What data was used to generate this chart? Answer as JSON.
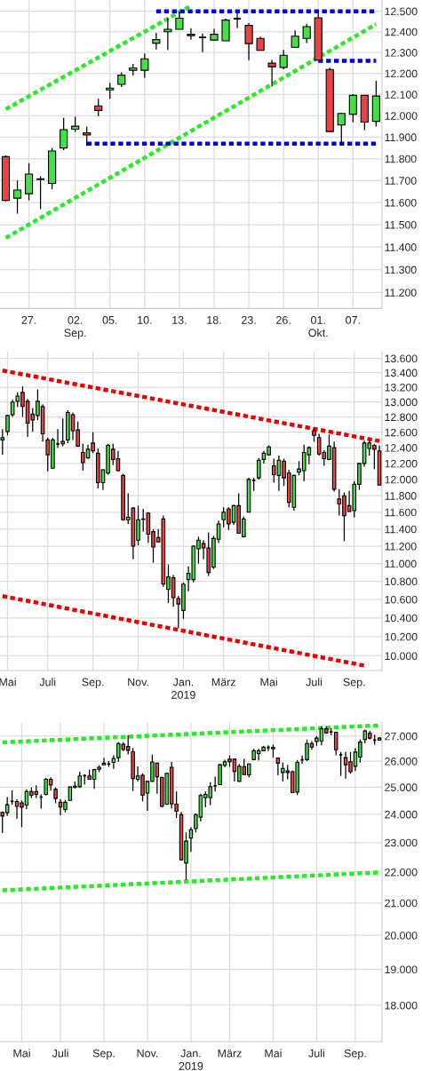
{
  "chart_data": [
    {
      "type": "candlestick",
      "log": true,
      "grid": true,
      "legend": false,
      "categories": [
        null,
        null,
        "27.",
        null,
        null,
        null,
        "02.\nSep.",
        null,
        null,
        "05.",
        null,
        null,
        "10.",
        null,
        null,
        "13.",
        null,
        null,
        "18.",
        null,
        null,
        "23.",
        null,
        null,
        "26.",
        null,
        null,
        "01.\nOkt.",
        null,
        null,
        "07.",
        null,
        null
      ],
      "ohlc": [
        [
          11810,
          11815,
          11605,
          11610
        ],
        [
          11620,
          11700,
          11550,
          11657
        ],
        [
          11640,
          11780,
          11610,
          11730
        ],
        [
          11705,
          11720,
          11570,
          11708
        ],
        [
          11687,
          11850,
          11660,
          11836
        ],
        [
          11850,
          11990,
          11840,
          11935
        ],
        [
          11937,
          11995,
          11925,
          11951
        ],
        [
          11920,
          11950,
          11860,
          11910
        ],
        [
          12046,
          12080,
          11998,
          12025
        ],
        [
          12122,
          12155,
          12080,
          12130
        ],
        [
          12148,
          12205,
          12135,
          12192
        ],
        [
          12215,
          12245,
          12190,
          12226
        ],
        [
          12215,
          12295,
          12180,
          12270
        ],
        [
          12345,
          12395,
          12315,
          12362
        ],
        [
          12400,
          12468,
          12312,
          12412
        ],
        [
          12412,
          12498,
          12412,
          12466
        ],
        [
          12388,
          12418,
          12362,
          12381
        ],
        [
          12373,
          12392,
          12302,
          12373
        ],
        [
          12360,
          12414,
          12357,
          12388
        ],
        [
          12356,
          12464,
          12356,
          12457
        ],
        [
          12464,
          12492,
          12418,
          12464
        ],
        [
          12431,
          12442,
          12263,
          12343
        ],
        [
          12368,
          12377,
          12310,
          12310
        ],
        [
          12249,
          12264,
          12137,
          12232
        ],
        [
          12229,
          12312,
          12220,
          12287
        ],
        [
          12325,
          12407,
          12325,
          12379
        ],
        [
          12368,
          12439,
          12346,
          12425
        ],
        [
          12468,
          12492,
          12264,
          12264
        ],
        [
          12219,
          12227,
          11926,
          11926
        ],
        [
          11957,
          12015,
          11870,
          12011
        ],
        [
          12007,
          12102,
          11970,
          12096
        ],
        [
          12096,
          12096,
          11933,
          11970
        ],
        [
          11974,
          12165,
          11950,
          12093
        ]
      ],
      "colors": [
        "#e84444",
        "#45e045",
        "#45e045",
        "#000000",
        "#45e045",
        "#45e045",
        "#45e045",
        "#e84444",
        "#e84444",
        "#45e045",
        "#45e045",
        "#45e045",
        "#45e045",
        "#45e045",
        "#45e045",
        "#45e045",
        "#e84444",
        "#000000",
        "#45e045",
        "#45e045",
        "#000000",
        "#e84444",
        "#e84444",
        "#e84444",
        "#45e045",
        "#45e045",
        "#45e045",
        "#e84444",
        "#e84444",
        "#45e045",
        "#45e045",
        "#e84444",
        "#45e045"
      ],
      "series": [
        {
          "type": "line",
          "color": "#22ee22",
          "line_style": "dotted",
          "values": [
            12031,
            null,
            null,
            null,
            null,
            null,
            null,
            null,
            null,
            null,
            null,
            null,
            null,
            null,
            null,
            null,
            12527,
            null,
            null,
            null,
            null,
            null,
            null,
            null,
            null,
            null,
            null,
            null,
            null,
            null,
            null,
            null,
            null
          ]
        },
        {
          "type": "line",
          "color": "#22ee22",
          "line_style": "dotted",
          "values": [
            11441,
            null,
            null,
            null,
            null,
            null,
            null,
            null,
            null,
            null,
            null,
            null,
            null,
            null,
            null,
            null,
            null,
            null,
            null,
            null,
            null,
            null,
            null,
            null,
            null,
            null,
            null,
            null,
            null,
            null,
            null,
            null,
            12437
          ]
        },
        {
          "type": "line",
          "color": "#0000ee",
          "line_style": "dotted",
          "values": [
            null,
            null,
            null,
            null,
            null,
            null,
            null,
            null,
            null,
            null,
            null,
            null,
            null,
            12500,
            null,
            null,
            null,
            null,
            null,
            null,
            null,
            null,
            null,
            null,
            null,
            null,
            null,
            null,
            null,
            null,
            null,
            null,
            12500
          ]
        },
        {
          "type": "line",
          "color": "#0000ee",
          "line_style": "dotted",
          "values": [
            null,
            null,
            null,
            null,
            null,
            null,
            null,
            11870,
            null,
            null,
            null,
            null,
            null,
            null,
            null,
            null,
            null,
            null,
            null,
            null,
            null,
            null,
            null,
            null,
            null,
            null,
            null,
            null,
            null,
            null,
            null,
            null,
            11870
          ]
        },
        {
          "type": "line",
          "color": "#0000ee",
          "line_style": "dotted",
          "values": [
            null,
            null,
            null,
            null,
            null,
            null,
            null,
            null,
            null,
            null,
            null,
            null,
            null,
            null,
            null,
            null,
            null,
            null,
            null,
            null,
            null,
            null,
            null,
            null,
            null,
            null,
            null,
            12260,
            null,
            null,
            null,
            null,
            12260
          ]
        }
      ],
      "ylim": [
        11130,
        12555
      ],
      "yticks": [
        {
          "value": 11200,
          "label": "11.200"
        },
        {
          "value": 11300,
          "label": "11.300"
        },
        {
          "value": 11400,
          "label": "11.400"
        },
        {
          "value": 11500,
          "label": "11.500"
        },
        {
          "value": 11600,
          "label": "11.600"
        },
        {
          "value": 11700,
          "label": "11.700"
        },
        {
          "value": 11800,
          "label": "11.800"
        },
        {
          "value": 11900,
          "label": "11.900"
        },
        {
          "value": 12000,
          "label": "12.000"
        },
        {
          "value": 12100,
          "label": "12.100"
        },
        {
          "value": 12200,
          "label": "12.200"
        },
        {
          "value": 12300,
          "label": "12.300"
        },
        {
          "value": 12400,
          "label": "12.400"
        },
        {
          "value": 12500,
          "label": "12.500"
        }
      ]
    },
    {
      "type": "candlestick",
      "log": true,
      "grid": true,
      "legend": false,
      "categories": [
        null,
        "Mai",
        null,
        null,
        null,
        null,
        null,
        null,
        null,
        "Juli",
        null,
        null,
        null,
        null,
        null,
        null,
        null,
        null,
        "Sep.",
        null,
        null,
        null,
        null,
        null,
        null,
        null,
        null,
        "Nov.",
        null,
        null,
        null,
        null,
        null,
        null,
        null,
        null,
        "Jan.\n2019",
        null,
        null,
        null,
        null,
        null,
        null,
        null,
        "März",
        null,
        null,
        null,
        null,
        null,
        null,
        null,
        null,
        "Mai",
        null,
        null,
        null,
        null,
        null,
        null,
        null,
        null,
        "Juli",
        null,
        null,
        null,
        null,
        null,
        null,
        null,
        "Sep.",
        null,
        null,
        null,
        null,
        null
      ],
      "ohlc": [
        [
          12500,
          12640,
          12310,
          12530
        ],
        [
          12610,
          12830,
          12560,
          12820
        ],
        [
          12830,
          13030,
          12805,
          13000
        ],
        [
          13010,
          13130,
          12930,
          13080
        ],
        [
          13130,
          13210,
          12800,
          12940
        ],
        [
          13010,
          13040,
          12540,
          12720
        ],
        [
          12840,
          12920,
          12610,
          12760
        ],
        [
          12820,
          13170,
          12760,
          13010
        ],
        [
          12940,
          12970,
          12480,
          12580
        ],
        [
          12500,
          12530,
          12100,
          12310
        ],
        [
          12140,
          12525,
          12130,
          12500
        ],
        [
          12450,
          12640,
          12400,
          12450
        ],
        [
          12450,
          12780,
          12420,
          12480
        ],
        [
          12500,
          12890,
          12460,
          12860
        ],
        [
          12830,
          12860,
          12500,
          12620
        ],
        [
          12630,
          12740,
          12410,
          12420
        ],
        [
          12340,
          12450,
          12110,
          12210
        ],
        [
          12270,
          12440,
          12260,
          12380
        ],
        [
          12460,
          12600,
          12330,
          12360
        ],
        [
          12330,
          12390,
          11890,
          11960
        ],
        [
          11960,
          12130,
          11870,
          12120
        ],
        [
          12080,
          12450,
          12060,
          12430
        ],
        [
          12380,
          12450,
          12180,
          12250
        ],
        [
          12260,
          12360,
          12100,
          12110
        ],
        [
          12050,
          12070,
          11500,
          11510
        ],
        [
          11510,
          11830,
          11460,
          11540
        ],
        [
          11650,
          11660,
          11050,
          11200
        ],
        [
          11270,
          11680,
          11210,
          11510
        ],
        [
          11515,
          11640,
          11370,
          11520
        ],
        [
          11590,
          11600,
          11240,
          11340
        ],
        [
          11370,
          11400,
          11010,
          11190
        ],
        [
          11300,
          11400,
          11250,
          11250
        ],
        [
          11520,
          11560,
          10740,
          10770
        ],
        [
          10710,
          10990,
          10560,
          10850
        ],
        [
          10840,
          10870,
          10520,
          10620
        ],
        [
          10610,
          10640,
          10290,
          10550
        ],
        [
          10480,
          10790,
          10390,
          10770
        ],
        [
          10820,
          10970,
          10690,
          10890
        ],
        [
          10820,
          11210,
          10790,
          11200
        ],
        [
          11170,
          11310,
          11000,
          11270
        ],
        [
          11230,
          11270,
          11050,
          11180
        ],
        [
          11180,
          11360,
          10860,
          10900
        ],
        [
          10960,
          11320,
          10940,
          11290
        ],
        [
          11280,
          11500,
          11240,
          11460
        ],
        [
          11510,
          11660,
          11420,
          11600
        ],
        [
          11640,
          11660,
          11390,
          11460
        ],
        [
          11480,
          11690,
          11450,
          11680
        ],
        [
          11680,
          11830,
          11350,
          11350
        ],
        [
          11310,
          11550,
          11300,
          11520
        ],
        [
          11600,
          12020,
          11600,
          12000
        ],
        [
          11990,
          12020,
          11860,
          11990
        ],
        [
          12020,
          12270,
          12000,
          12240
        ],
        [
          12250,
          12360,
          12200,
          12330
        ],
        [
          12310,
          12430,
          12300,
          12410
        ],
        [
          12170,
          12260,
          11960,
          12060
        ],
        [
          12050,
          12300,
          11860,
          12240
        ],
        [
          12230,
          12260,
          11920,
          12020
        ],
        [
          12080,
          12120,
          11660,
          11720
        ],
        [
          11660,
          12060,
          11620,
          12050
        ],
        [
          12090,
          12230,
          12050,
          12130
        ],
        [
          12110,
          12440,
          11980,
          12340
        ],
        [
          12310,
          12420,
          12190,
          12400
        ],
        [
          12620,
          12650,
          12480,
          12560
        ],
        [
          12530,
          12580,
          12300,
          12320
        ],
        [
          12340,
          12370,
          12170,
          12260
        ],
        [
          12250,
          12570,
          12250,
          12420
        ],
        [
          12400,
          12480,
          11850,
          11880
        ],
        [
          11760,
          11880,
          11560,
          11700
        ],
        [
          11800,
          11840,
          11260,
          11560
        ],
        [
          11680,
          11860,
          11610,
          11610
        ],
        [
          11620,
          11980,
          11540,
          11940
        ],
        [
          11940,
          12210,
          11870,
          12200
        ],
        [
          12200,
          12490,
          12160,
          12460
        ],
        [
          12390,
          12490,
          12300,
          12460
        ],
        [
          12430,
          12450,
          12130,
          12380
        ],
        [
          12360,
          12430,
          11930,
          11930
        ]
      ],
      "colors": [
        "#45e045",
        "#45e045",
        "#45e045",
        "#45e045",
        "#e84444",
        "#e84444",
        "#e84444",
        "#45e045",
        "#e84444",
        "#e84444",
        "#45e045",
        "#000000",
        "#45e045",
        "#45e045",
        "#e84444",
        "#e84444",
        "#e84444",
        "#45e045",
        "#e84444",
        "#e84444",
        "#45e045",
        "#45e045",
        "#e84444",
        "#e84444",
        "#e84444",
        "#45e045",
        "#e84444",
        "#45e045",
        "#45e045",
        "#e84444",
        "#e84444",
        "#e84444",
        "#e84444",
        "#45e045",
        "#e84444",
        "#e84444",
        "#45e045",
        "#45e045",
        "#45e045",
        "#45e045",
        "#e84444",
        "#e84444",
        "#45e045",
        "#45e045",
        "#45e045",
        "#e84444",
        "#45e045",
        "#e84444",
        "#45e045",
        "#45e045",
        "#000000",
        "#45e045",
        "#45e045",
        "#45e045",
        "#e84444",
        "#45e045",
        "#e84444",
        "#e84444",
        "#45e045",
        "#45e045",
        "#45e045",
        "#45e045",
        "#e84444",
        "#e84444",
        "#e84444",
        "#45e045",
        "#e84444",
        "#e84444",
        "#e84444",
        "#e84444",
        "#45e045",
        "#45e045",
        "#45e045",
        "#45e045",
        "#e84444",
        "#e84444"
      ],
      "series": [
        {
          "type": "line",
          "color": "#ee0000",
          "line_style": "dotted",
          "values": [
            13430,
            null,
            null,
            null,
            null,
            null,
            null,
            null,
            null,
            null,
            null,
            null,
            null,
            null,
            null,
            null,
            null,
            null,
            null,
            null,
            null,
            null,
            null,
            null,
            null,
            null,
            null,
            null,
            null,
            null,
            null,
            null,
            null,
            null,
            null,
            null,
            null,
            null,
            null,
            null,
            null,
            null,
            null,
            null,
            null,
            null,
            null,
            null,
            null,
            null,
            null,
            null,
            null,
            null,
            null,
            null,
            null,
            null,
            null,
            null,
            null,
            null,
            null,
            null,
            null,
            null,
            null,
            null,
            null,
            null,
            null,
            null,
            null,
            null,
            null,
            12486
          ]
        },
        {
          "type": "line",
          "color": "#ee0000",
          "line_style": "dotted",
          "values": [
            10637,
            null,
            null,
            null,
            null,
            null,
            null,
            null,
            null,
            null,
            null,
            null,
            null,
            null,
            null,
            null,
            null,
            null,
            null,
            null,
            null,
            null,
            null,
            null,
            null,
            null,
            null,
            null,
            null,
            null,
            null,
            null,
            null,
            null,
            null,
            null,
            null,
            null,
            null,
            null,
            null,
            null,
            null,
            null,
            null,
            null,
            null,
            null,
            null,
            null,
            null,
            null,
            null,
            null,
            null,
            null,
            null,
            null,
            null,
            null,
            null,
            null,
            null,
            null,
            null,
            null,
            null,
            null,
            null,
            null,
            null,
            null,
            9900,
            null,
            null,
            null
          ]
        }
      ],
      "ylim": [
        9850,
        13700
      ],
      "yticks": [
        {
          "value": 10000,
          "label": "10.000"
        },
        {
          "value": 10200,
          "label": "10.200"
        },
        {
          "value": 10400,
          "label": "10.400"
        },
        {
          "value": 10600,
          "label": "10.600"
        },
        {
          "value": 10800,
          "label": "10.800"
        },
        {
          "value": 11000,
          "label": "11.000"
        },
        {
          "value": 11200,
          "label": "11.200"
        },
        {
          "value": 11400,
          "label": "11.400"
        },
        {
          "value": 11600,
          "label": "11.600"
        },
        {
          "value": 11800,
          "label": "11.800"
        },
        {
          "value": 12000,
          "label": "12.000"
        },
        {
          "value": 12200,
          "label": "12.200"
        },
        {
          "value": 12400,
          "label": "12.400"
        },
        {
          "value": 12600,
          "label": "12.600"
        },
        {
          "value": 12800,
          "label": "12.800"
        },
        {
          "value": 13000,
          "label": "13.000"
        },
        {
          "value": 13200,
          "label": "13.200"
        },
        {
          "value": 13400,
          "label": "13.400"
        },
        {
          "value": 13600,
          "label": "13.600"
        }
      ]
    },
    {
      "type": "candlestick",
      "log": true,
      "grid": true,
      "legend": false,
      "categories": [
        null,
        null,
        null,
        null,
        "Mai",
        null,
        null,
        null,
        null,
        null,
        null,
        null,
        "Juli",
        null,
        null,
        null,
        null,
        null,
        null,
        null,
        null,
        "Sep.",
        null,
        null,
        null,
        null,
        null,
        null,
        null,
        null,
        "Nov.",
        null,
        null,
        null,
        null,
        null,
        null,
        null,
        null,
        "Jan.\n2019",
        null,
        null,
        null,
        null,
        null,
        null,
        null,
        "März",
        null,
        null,
        null,
        null,
        null,
        null,
        null,
        null,
        "Mai",
        null,
        null,
        null,
        null,
        null,
        null,
        null,
        null,
        "Juli",
        null,
        null,
        null,
        null,
        null,
        null,
        null,
        "Sep.",
        null,
        null,
        null,
        null,
        null
      ],
      "ohlc": [
        [
          24070,
          24100,
          23330,
          23940
        ],
        [
          24060,
          24630,
          23940,
          24350
        ],
        [
          24470,
          24880,
          24350,
          24470
        ],
        [
          24470,
          24550,
          23840,
          24290
        ],
        [
          24420,
          24500,
          23540,
          24260
        ],
        [
          24340,
          24920,
          24190,
          24840
        ],
        [
          24840,
          24990,
          24590,
          24700
        ],
        [
          24840,
          25070,
          24590,
          24730
        ],
        [
          24630,
          24730,
          24210,
          24630
        ],
        [
          24730,
          25350,
          24690,
          25300
        ],
        [
          25300,
          25380,
          24870,
          25080
        ],
        [
          24920,
          24990,
          24400,
          24580
        ],
        [
          24440,
          24550,
          23970,
          24270
        ],
        [
          24170,
          24530,
          24070,
          24440
        ],
        [
          24510,
          25020,
          24510,
          25010
        ],
        [
          24990,
          25220,
          24960,
          25040
        ],
        [
          25020,
          25590,
          24970,
          25430
        ],
        [
          25440,
          25490,
          25100,
          25440
        ],
        [
          25430,
          25670,
          25300,
          25300
        ],
        [
          25300,
          25700,
          24940,
          25670
        ],
        [
          25690,
          25840,
          25570,
          25760
        ],
        [
          25860,
          26130,
          25860,
          25920
        ],
        [
          25890,
          26000,
          25780,
          25890
        ],
        [
          25950,
          26230,
          25700,
          26110
        ],
        [
          26140,
          26750,
          25980,
          26700
        ],
        [
          26670,
          26750,
          26400,
          26460
        ],
        [
          26580,
          27030,
          26270,
          26430
        ],
        [
          26370,
          26520,
          24860,
          25330
        ],
        [
          25300,
          25800,
          25220,
          25430
        ],
        [
          25450,
          25530,
          24480,
          24700
        ],
        [
          24780,
          25240,
          24130,
          25220
        ],
        [
          25220,
          26260,
          25220,
          25970
        ],
        [
          25920,
          25940,
          24760,
          25400
        ],
        [
          25370,
          25400,
          24250,
          24290
        ],
        [
          24370,
          25560,
          24340,
          25530
        ],
        [
          25760,
          25970,
          24220,
          24380
        ],
        [
          24370,
          24840,
          23870,
          24110
        ],
        [
          23990,
          24090,
          22380,
          22410
        ],
        [
          22300,
          23360,
          21740,
          23050
        ],
        [
          23160,
          23540,
          22680,
          23450
        ],
        [
          23490,
          24030,
          23360,
          23990
        ],
        [
          23900,
          24760,
          23740,
          24690
        ],
        [
          24610,
          24840,
          24260,
          24730
        ],
        [
          24610,
          25180,
          24340,
          25020
        ],
        [
          25050,
          25400,
          24840,
          25050
        ],
        [
          25100,
          25890,
          25080,
          25860
        ],
        [
          25840,
          26060,
          25760,
          25980
        ],
        [
          26080,
          26230,
          25780,
          25980
        ],
        [
          26080,
          26110,
          25220,
          25600
        ],
        [
          25220,
          25890,
          25220,
          25800
        ],
        [
          25790,
          26090,
          25470,
          25480
        ],
        [
          25470,
          25910,
          25370,
          25890
        ],
        [
          26060,
          26490,
          26060,
          26410
        ],
        [
          26300,
          26490,
          26030,
          26410
        ],
        [
          26410,
          26600,
          26400,
          26560
        ],
        [
          26540,
          26630,
          26400,
          26540
        ],
        [
          26550,
          26660,
          26150,
          26490
        ],
        [
          26120,
          26140,
          25450,
          25920
        ],
        [
          25560,
          25940,
          25220,
          25720
        ],
        [
          25620,
          25860,
          25300,
          25560
        ],
        [
          25590,
          25630,
          24780,
          24800
        ],
        [
          24820,
          26050,
          24710,
          25950
        ],
        [
          26050,
          26220,
          25900,
          26050
        ],
        [
          26060,
          26860,
          26000,
          26700
        ],
        [
          26700,
          26800,
          26450,
          26560
        ],
        [
          26780,
          27010,
          26600,
          26920
        ],
        [
          26800,
          27400,
          26630,
          27300
        ],
        [
          27300,
          27400,
          27100,
          27130
        ],
        [
          27170,
          27320,
          27030,
          27170
        ],
        [
          27160,
          27180,
          26230,
          26450
        ],
        [
          26250,
          26360,
          25430,
          26250
        ],
        [
          26140,
          26360,
          25330,
          25860
        ],
        [
          25980,
          26360,
          25510,
          25590
        ],
        [
          25800,
          26510,
          25620,
          26360
        ],
        [
          26160,
          26860,
          25940,
          26760
        ],
        [
          26860,
          27270,
          26710,
          27210
        ],
        [
          27120,
          27210,
          26860,
          26920
        ],
        [
          26840,
          27060,
          26660,
          26840
        ],
        [
          26840,
          26960,
          26840,
          26920
        ]
      ],
      "colors": [
        "#e84444",
        "#45e045",
        "#000000",
        "#e84444",
        "#e84444",
        "#45e045",
        "#e84444",
        "#e84444",
        "#000000",
        "#45e045",
        "#e84444",
        "#e84444",
        "#e84444",
        "#45e045",
        "#45e045",
        "#45e045",
        "#45e045",
        "#000000",
        "#e84444",
        "#45e045",
        "#45e045",
        "#45e045",
        "#000000",
        "#45e045",
        "#45e045",
        "#e84444",
        "#e84444",
        "#e84444",
        "#45e045",
        "#e84444",
        "#45e045",
        "#45e045",
        "#e84444",
        "#e84444",
        "#45e045",
        "#e84444",
        "#e84444",
        "#e84444",
        "#45e045",
        "#45e045",
        "#45e045",
        "#45e045",
        "#45e045",
        "#45e045",
        "#000000",
        "#45e045",
        "#45e045",
        "#e84444",
        "#e84444",
        "#45e045",
        "#e84444",
        "#45e045",
        "#45e045",
        "#45e045",
        "#45e045",
        "#000000",
        "#e84444",
        "#e84444",
        "#45e045",
        "#e84444",
        "#e84444",
        "#45e045",
        "#000000",
        "#45e045",
        "#e84444",
        "#45e045",
        "#45e045",
        "#e84444",
        "#000000",
        "#e84444",
        "#000000",
        "#e84444",
        "#e84444",
        "#45e045",
        "#45e045",
        "#45e045",
        "#e84444",
        "#000000",
        "#45e045"
      ],
      "series": [
        {
          "type": "line",
          "color": "#22ee22",
          "line_style": "dotted",
          "values": [
            26746,
            null,
            null,
            null,
            null,
            null,
            null,
            null,
            null,
            null,
            null,
            null,
            null,
            null,
            null,
            null,
            null,
            null,
            null,
            null,
            null,
            null,
            null,
            null,
            null,
            null,
            null,
            null,
            null,
            null,
            null,
            null,
            null,
            null,
            null,
            null,
            null,
            null,
            null,
            null,
            null,
            null,
            null,
            null,
            null,
            null,
            null,
            null,
            null,
            null,
            null,
            null,
            null,
            null,
            null,
            null,
            null,
            null,
            null,
            null,
            null,
            null,
            null,
            null,
            null,
            null,
            null,
            null,
            null,
            null,
            null,
            null,
            null,
            null,
            null,
            null,
            null,
            null,
            27440
          ]
        },
        {
          "type": "line",
          "color": "#22ee22",
          "line_style": "dotted",
          "values": [
            21402,
            null,
            null,
            null,
            null,
            null,
            null,
            null,
            null,
            null,
            null,
            null,
            null,
            null,
            null,
            null,
            null,
            null,
            null,
            null,
            null,
            null,
            null,
            null,
            null,
            null,
            null,
            null,
            null,
            null,
            null,
            null,
            null,
            null,
            null,
            null,
            null,
            null,
            null,
            null,
            null,
            null,
            null,
            null,
            null,
            null,
            null,
            null,
            null,
            null,
            null,
            null,
            null,
            null,
            null,
            null,
            null,
            null,
            null,
            null,
            null,
            null,
            null,
            null,
            null,
            null,
            null,
            null,
            null,
            null,
            null,
            null,
            null,
            null,
            null,
            null,
            null,
            null,
            21990
          ]
        }
      ],
      "ylim": [
        17040,
        27560
      ],
      "yticks": [
        {
          "value": 18000,
          "label": "18.000"
        },
        {
          "value": 19000,
          "label": "19.000"
        },
        {
          "value": 20000,
          "label": "20.000"
        },
        {
          "value": 21000,
          "label": "21.000"
        },
        {
          "value": 22000,
          "label": "22.000"
        },
        {
          "value": 23000,
          "label": "23.000"
        },
        {
          "value": 24000,
          "label": "24.000"
        },
        {
          "value": 25000,
          "label": "25.000"
        },
        {
          "value": 26000,
          "label": "26.000"
        },
        {
          "value": 27000,
          "label": "27.000"
        }
      ]
    }
  ]
}
